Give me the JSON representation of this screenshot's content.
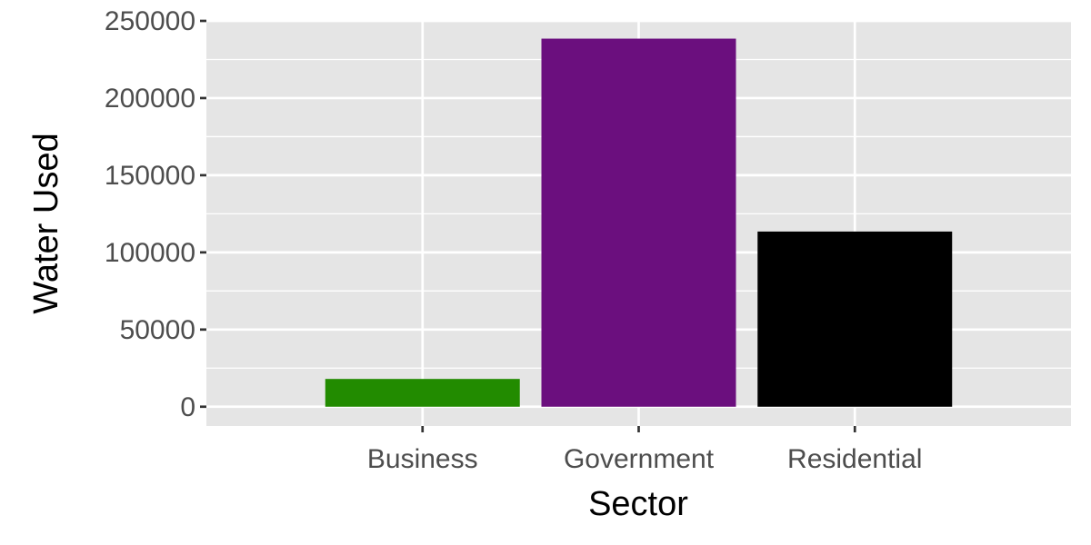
{
  "chart_data": {
    "type": "bar",
    "title": "",
    "xlabel": "Sector",
    "ylabel": "Water Used",
    "categories": [
      "Business",
      "Government",
      "Residential"
    ],
    "values": [
      18000,
      238500,
      113500
    ],
    "bar_colors": [
      "#228B00",
      "#6B0F7E",
      "#000000"
    ],
    "ylim": [
      -12500,
      250000
    ],
    "yticks": [
      0,
      50000,
      100000,
      150000,
      200000,
      250000
    ],
    "ytick_labels": [
      "0",
      "50000",
      "100000",
      "150000",
      "200000",
      "250000"
    ],
    "grid": true,
    "legend": "none",
    "panel_background": "#E5E5E5",
    "grid_color": "#FFFFFF"
  }
}
